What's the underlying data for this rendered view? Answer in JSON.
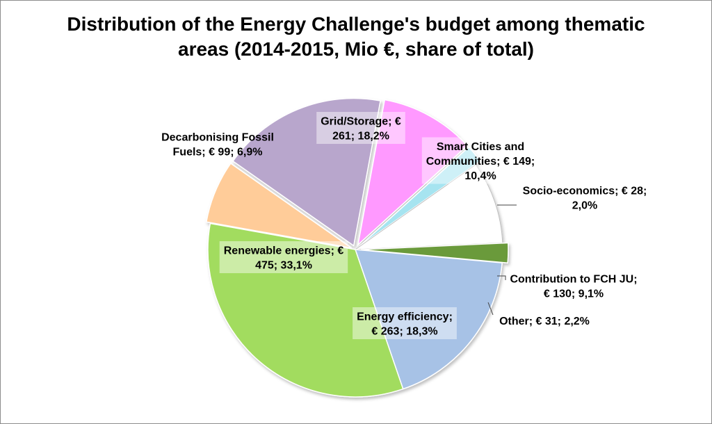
{
  "chart_data": {
    "type": "pie",
    "title_line1": "Distribution of the Energy Challenge's budget among thematic",
    "title_line2": "areas (2014-2015, Mio €, share of total)",
    "unit": "Mio €",
    "slices": [
      {
        "name": "Grid/Storage",
        "value": 261,
        "share": "18,2%",
        "color": "#b8a6cc",
        "label_lines": [
          "Grid/Storage; €",
          "261; 18,2%"
        ]
      },
      {
        "name": "Smart Cities and Communities",
        "value": 149,
        "share": "10,4%",
        "color": "#ff99ff",
        "label_lines": [
          "Smart Cities and",
          "Communities; € 149;",
          "10,4%"
        ]
      },
      {
        "name": "Socio-economics",
        "value": 28,
        "share": "2,0%",
        "color": "#a6e4f0",
        "label_lines": [
          "Socio-economics;  € 28;",
          "2,0%"
        ]
      },
      {
        "name": "Contribution to FCH JU",
        "value": 130,
        "share": "9,1%",
        "color": "#ffffff",
        "label_lines": [
          "Contribution to FCH JU;",
          "€ 130; 9,1%"
        ]
      },
      {
        "name": "Other",
        "value": 31,
        "share": "2,2%",
        "color": "#6b9a3a",
        "label_lines": [
          "Other; € 31; 2,2%"
        ]
      },
      {
        "name": "Energy efficiency",
        "value": 263,
        "share": "18,3%",
        "color": "#a7c2e6",
        "label_lines": [
          "Energy efficiency;",
          "€ 263; 18,3%"
        ]
      },
      {
        "name": "Renewable energies",
        "value": 475,
        "share": "33,1%",
        "color": "#a2dc5e",
        "label_lines": [
          "Renewable energies; €",
          "475; 33,1%"
        ]
      },
      {
        "name": "Decarbonising Fossil Fuels",
        "value": 99,
        "share": "6,9%",
        "color": "#ffcc99",
        "label_lines": [
          "Decarbonising Fossil",
          "Fuels; € 99; 6,9%"
        ]
      }
    ]
  }
}
